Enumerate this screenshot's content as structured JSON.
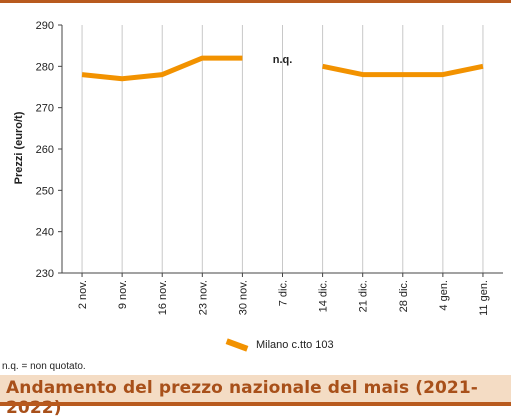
{
  "chart_data": {
    "type": "line",
    "title": "Andamento del prezzo nazionale del mais (2021-2022)",
    "xlabel": "",
    "ylabel": "Prezzi (euro/t)",
    "ylim": [
      230,
      290
    ],
    "yticks": [
      230,
      240,
      250,
      260,
      270,
      280,
      290
    ],
    "categories": [
      "2 nov.",
      "9 nov.",
      "16 nov.",
      "23 nov.",
      "30 nov.",
      "7 dic.",
      "14 dic.",
      "21 dic.",
      "28 dic.",
      "4 gen.",
      "11 gen."
    ],
    "series": [
      {
        "name": "Milano  c.tto 103",
        "color": "#f29200",
        "values": [
          278,
          277,
          278,
          282,
          282,
          null,
          280,
          278,
          278,
          278,
          280
        ]
      }
    ],
    "annotations": [
      {
        "text": "n.q.",
        "category": "7 dic."
      }
    ],
    "grid": {
      "x": true,
      "y": false
    },
    "legend_position": "bottom"
  },
  "note": "n.q. = non quotato.",
  "footer_title": "Andamento del prezzo nazionale del mais (2021-2022)"
}
